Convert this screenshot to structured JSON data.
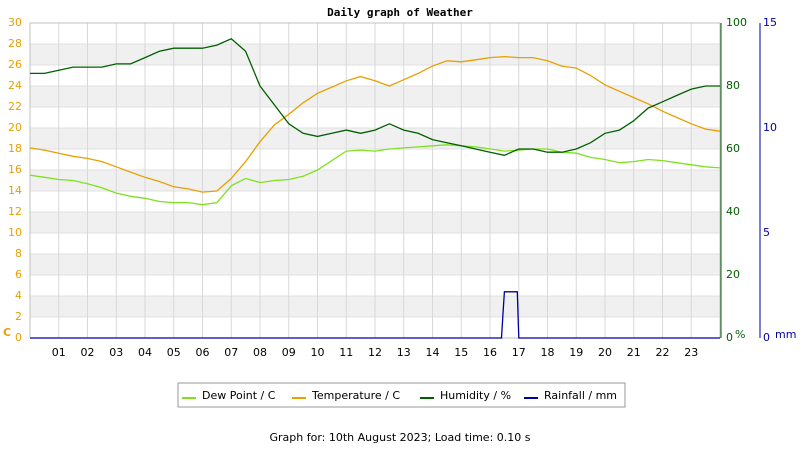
{
  "chart_data": {
    "type": "line",
    "title": "Daily graph of Weather",
    "x": [
      0,
      0.5,
      1,
      1.5,
      2,
      2.5,
      3,
      3.5,
      4,
      4.5,
      5,
      5.5,
      6,
      6.5,
      7,
      7.5,
      8,
      8.5,
      9,
      9.5,
      10,
      10.5,
      11,
      11.5,
      12,
      12.5,
      13,
      13.5,
      14,
      14.5,
      15,
      15.5,
      16,
      16.5,
      17,
      17.5,
      18,
      18.5,
      19,
      19.5,
      20,
      20.5,
      21,
      21.5,
      22,
      22.5,
      23,
      23.5,
      24
    ],
    "xlim": [
      0,
      24
    ],
    "xticks": [
      {
        "value": 1,
        "label": "01"
      },
      {
        "value": 2,
        "label": "02"
      },
      {
        "value": 3,
        "label": "03"
      },
      {
        "value": 4,
        "label": "04"
      },
      {
        "value": 5,
        "label": "05"
      },
      {
        "value": 6,
        "label": "06"
      },
      {
        "value": 7,
        "label": "07"
      },
      {
        "value": 8,
        "label": "08"
      },
      {
        "value": 9,
        "label": "09"
      },
      {
        "value": 10,
        "label": "10"
      },
      {
        "value": 11,
        "label": "11"
      },
      {
        "value": 12,
        "label": "12"
      },
      {
        "value": 13,
        "label": "13"
      },
      {
        "value": 14,
        "label": "14"
      },
      {
        "value": 15,
        "label": "15"
      },
      {
        "value": 16,
        "label": "16"
      },
      {
        "value": 17,
        "label": "17"
      },
      {
        "value": 18,
        "label": "18"
      },
      {
        "value": 19,
        "label": "19"
      },
      {
        "value": 20,
        "label": "20"
      },
      {
        "value": 21,
        "label": "21"
      },
      {
        "value": 22,
        "label": "22"
      },
      {
        "value": 23,
        "label": "23"
      }
    ],
    "ylim": [
      0,
      30
    ],
    "yticks": [
      0,
      2,
      4,
      6,
      8,
      10,
      12,
      14,
      16,
      18,
      20,
      22,
      24,
      26,
      28,
      30
    ],
    "ylabel": "C",
    "ycolor": "#e8a000",
    "y2lim": [
      0,
      100
    ],
    "y2ticks": [
      0,
      20,
      40,
      60,
      80,
      100
    ],
    "y2label": "%",
    "y2color": "#006000",
    "y3lim": [
      0,
      15
    ],
    "y3ticks": [
      0,
      5,
      10,
      15
    ],
    "y3label": "mm",
    "y3color": "#0000a0",
    "series": [
      {
        "name": "Dew Point / C",
        "color": "#80e020",
        "axis": "y",
        "values": [
          15.5,
          15.3,
          15.1,
          15.0,
          14.7,
          14.3,
          13.8,
          13.5,
          13.3,
          13.0,
          12.9,
          12.9,
          12.7,
          12.9,
          14.5,
          15.2,
          14.8,
          15.0,
          15.1,
          15.4,
          16.0,
          16.9,
          17.8,
          17.9,
          17.8,
          18.0,
          18.1,
          18.2,
          18.3,
          18.4,
          18.3,
          18.2,
          18.0,
          17.8,
          17.9,
          18.0,
          18.0,
          17.7,
          17.6,
          17.2,
          17.0,
          16.7,
          16.8,
          17.0,
          16.9,
          16.7,
          16.5,
          16.3,
          16.2
        ]
      },
      {
        "name": "Temperature / C",
        "color": "#e8a000",
        "axis": "y",
        "values": [
          18.1,
          17.9,
          17.6,
          17.3,
          17.1,
          16.8,
          16.3,
          15.8,
          15.3,
          14.9,
          14.4,
          14.2,
          13.9,
          14.0,
          15.2,
          16.8,
          18.7,
          20.3,
          21.3,
          22.4,
          23.3,
          23.9,
          24.5,
          24.9,
          24.5,
          24.0,
          24.6,
          25.2,
          25.9,
          26.4,
          26.3,
          26.5,
          26.7,
          26.8,
          26.7,
          26.7,
          26.4,
          25.9,
          25.7,
          25.0,
          24.1,
          23.5,
          22.9,
          22.3,
          21.6,
          21.0,
          20.4,
          19.9,
          19.7
        ]
      },
      {
        "name": "Humidity / %",
        "color": "#006000",
        "axis": "y2",
        "values": [
          84,
          84,
          85,
          86,
          86,
          86,
          87,
          87,
          89,
          91,
          92,
          92,
          92,
          93,
          95,
          91,
          80,
          74,
          68,
          65,
          64,
          65,
          66,
          65,
          66,
          68,
          66,
          65,
          63,
          62,
          61,
          60,
          59,
          58,
          60,
          60,
          59,
          59,
          60,
          62,
          65,
          66,
          69,
          73,
          75,
          77,
          79,
          80,
          80
        ]
      },
      {
        "name": "Rainfall / mm",
        "color": "#0000a0",
        "axis": "y3",
        "x": [
          0,
          16.4,
          16.45,
          16.5,
          16.95,
          17.0,
          24
        ],
        "values": [
          0,
          0,
          1.1,
          2.2,
          2.2,
          0,
          0
        ]
      }
    ],
    "footer": "Graph for: 10th August 2023; Load time: 0.10 s"
  }
}
